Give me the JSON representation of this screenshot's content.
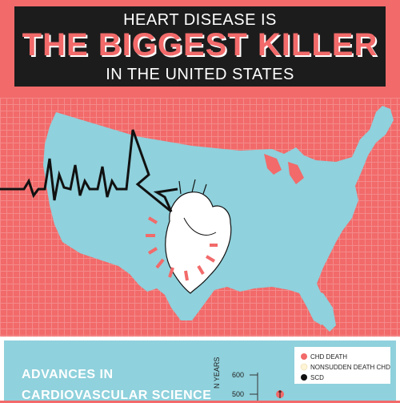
{
  "header": {
    "line1": "HEART DISEASE IS",
    "line2": "THE BIGGEST KILLER",
    "line3": "IN THE UNITED STATES"
  },
  "bottom": {
    "heading_line1": "ADVANCES IN",
    "heading_line2": "CARDIOVASCULAR SCIENCE",
    "axis_label_fragment": "N YEARS",
    "legend": [
      {
        "label": "CHD DEATH",
        "color": "#f26a6a"
      },
      {
        "label": "NONSUDDEN DEATH CHD",
        "color": "#fff4d6"
      },
      {
        "label": "SCD",
        "color": "#111111"
      }
    ],
    "ticks": [
      "600",
      "500"
    ]
  },
  "colors": {
    "background": "#f26a6a",
    "grid": "#f48a8a",
    "map": "#8fd1dc",
    "title_box": "#1c1c1c",
    "heart": "#ffffff",
    "pulse": "#111111"
  }
}
